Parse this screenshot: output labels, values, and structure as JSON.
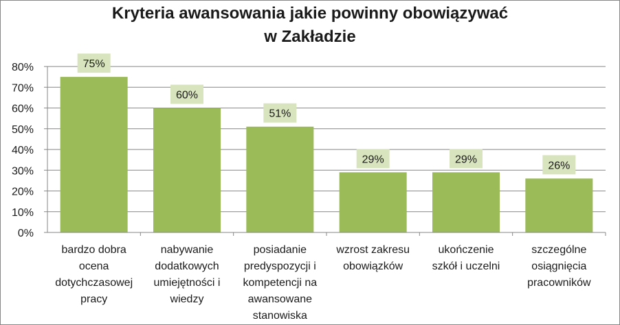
{
  "chart_data": {
    "type": "bar",
    "title_lines": [
      "Kryteria awansowania jakie powinny obowiązywać",
      "w Zakładzie"
    ],
    "categories": [
      "bardzo dobra ocena dotychczasowej pracy",
      "nabywanie dodatkowych umiejętności i wiedzy",
      "posiadanie predyspozycji i kompetencji na awansowane stanowiska",
      "wzrost zakresu obowiązków",
      "ukończenie szkół i uczelni",
      "szczególne osiągnięcia pracowników"
    ],
    "category_lines": [
      [
        "bardzo dobra",
        "ocena",
        "dotychczasowej",
        "pracy"
      ],
      [
        "nabywanie",
        "dodatkowych",
        "umiejętności i",
        "wiedzy"
      ],
      [
        "posiadanie",
        "predyspozycji i",
        "kompetencji na",
        "awansowane",
        "stanowiska"
      ],
      [
        "wzrost zakresu",
        "obowiązków"
      ],
      [
        "ukończenie",
        "szkół i uczelni"
      ],
      [
        "szczególne",
        "osiągnięcia",
        "pracowników"
      ]
    ],
    "values": [
      75,
      60,
      51,
      29,
      29,
      26
    ],
    "data_labels": [
      "75%",
      "60%",
      "51%",
      "29%",
      "29%",
      "26%"
    ],
    "yticks": [
      "0%",
      "10%",
      "20%",
      "30%",
      "40%",
      "50%",
      "60%",
      "70%",
      "80%"
    ],
    "ylim": [
      0,
      80
    ],
    "grid": true,
    "legend": "none",
    "colors": {
      "bar": "#9bbb59",
      "label_bg": "#d7e4bd",
      "grid": "#868686"
    }
  }
}
